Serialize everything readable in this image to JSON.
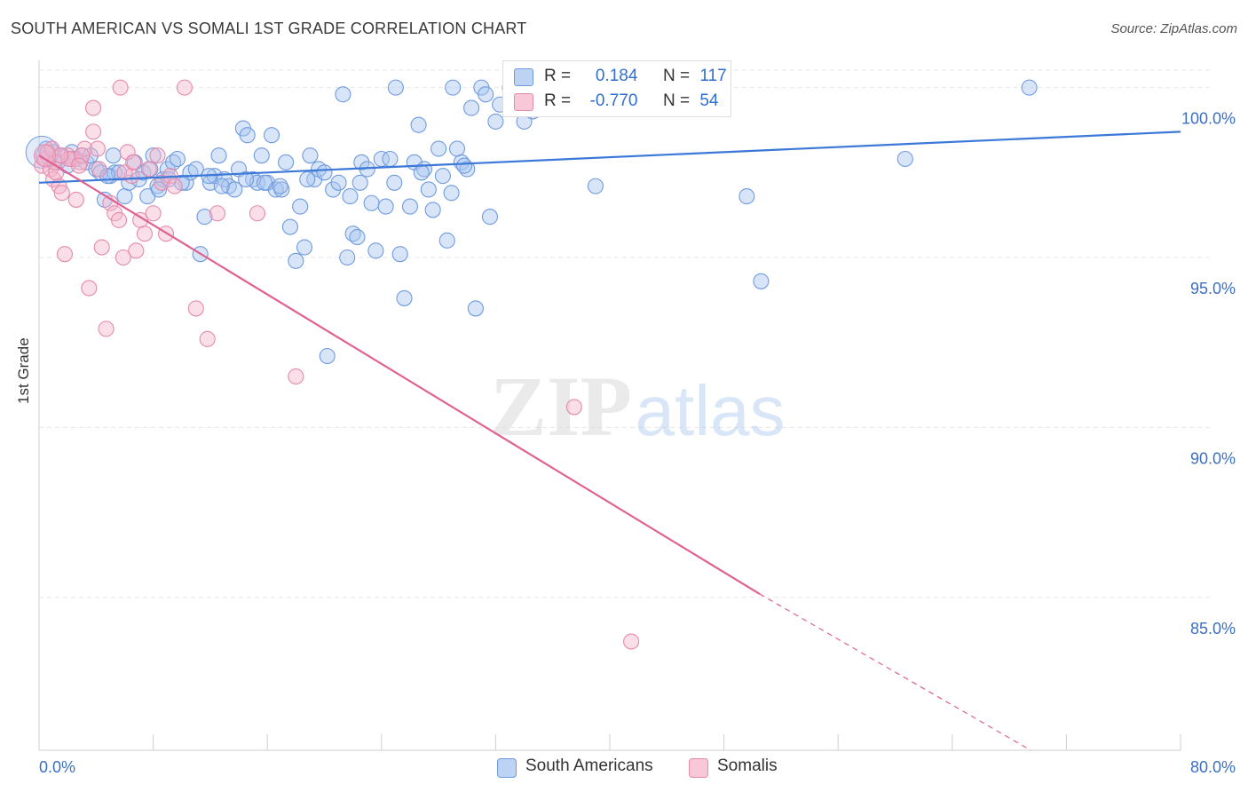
{
  "title": "SOUTH AMERICAN VS SOMALI 1ST GRADE CORRELATION CHART",
  "source": "Source: ZipAtlas.com",
  "watermark": {
    "zip": "ZIP",
    "atlas": "atlas"
  },
  "colors": {
    "blue": "#3b78d8",
    "blue_fill": "#a8c5f0",
    "pink": "#e06090",
    "pink_fill": "#f4b6cc",
    "axis_text": "#3b6fc4",
    "grid": "#e6e6e6"
  },
  "legend": {
    "rows": [
      {
        "r_label": "R =",
        "r_value": "0.184",
        "n_label": "N =",
        "n_value": "117",
        "series": "blue"
      },
      {
        "r_label": "R =",
        "r_value": "-0.770",
        "n_label": "N =",
        "n_value": "54",
        "series": "pink"
      }
    ]
  },
  "bottom_legend": [
    {
      "label": "South Americans",
      "series": "blue"
    },
    {
      "label": "Somalis",
      "series": "pink"
    }
  ],
  "chart_data": {
    "type": "scatter",
    "title": "SOUTH AMERICAN VS SOMALI 1ST GRADE CORRELATION CHART",
    "xlabel": "",
    "ylabel": "1st Grade",
    "xlim": [
      0,
      80
    ],
    "ylim": [
      80.5,
      100.8
    ],
    "x_tick_labels": [
      "0.0%",
      "80.0%"
    ],
    "y_ticks": [
      85,
      90,
      95,
      100
    ],
    "y_tick_labels": [
      "85.0%",
      "90.0%",
      "95.0%",
      "100.0%"
    ],
    "grid": "horizontal dashed",
    "legend_position": "top-center",
    "series": [
      {
        "name": "South Americans",
        "color": "#3b78d8",
        "r": 0.184,
        "n": 117,
        "trend": {
          "x": [
            0,
            80
          ],
          "y": [
            97.2,
            98.7
          ]
        },
        "points": [
          [
            0.3,
            98.0
          ],
          [
            0.5,
            98.2
          ],
          [
            0.7,
            97.9
          ],
          [
            1.0,
            98.1
          ],
          [
            1.3,
            97.8
          ],
          [
            1.6,
            98.0
          ],
          [
            2.0,
            97.7
          ],
          [
            2.3,
            98.1
          ],
          [
            2.6,
            97.9
          ],
          [
            3.0,
            98.0
          ],
          [
            3.3,
            97.8
          ],
          [
            3.6,
            98.0
          ],
          [
            4.0,
            97.6
          ],
          [
            4.3,
            97.5
          ],
          [
            4.6,
            96.7
          ],
          [
            5.0,
            97.4
          ],
          [
            5.3,
            97.5
          ],
          [
            5.6,
            97.5
          ],
          [
            6.0,
            96.8
          ],
          [
            6.3,
            97.2
          ],
          [
            6.7,
            97.8
          ],
          [
            7.0,
            97.3
          ],
          [
            7.3,
            97.5
          ],
          [
            7.6,
            96.8
          ],
          [
            8.0,
            98.0
          ],
          [
            8.3,
            97.1
          ],
          [
            8.7,
            97.3
          ],
          [
            9.0,
            97.6
          ],
          [
            9.4,
            97.8
          ],
          [
            9.7,
            97.9
          ],
          [
            10.3,
            97.2
          ],
          [
            10.6,
            97.5
          ],
          [
            11.0,
            97.6
          ],
          [
            11.3,
            95.1
          ],
          [
            11.6,
            96.2
          ],
          [
            12.0,
            97.2
          ],
          [
            12.3,
            97.4
          ],
          [
            12.6,
            98.0
          ],
          [
            13.0,
            97.3
          ],
          [
            13.3,
            97.1
          ],
          [
            13.7,
            97.0
          ],
          [
            14.0,
            97.6
          ],
          [
            14.3,
            98.8
          ],
          [
            14.6,
            98.6
          ],
          [
            15.0,
            97.3
          ],
          [
            15.3,
            97.2
          ],
          [
            15.6,
            98.0
          ],
          [
            16.0,
            97.2
          ],
          [
            16.3,
            98.6
          ],
          [
            16.6,
            97.0
          ],
          [
            17.0,
            97.0
          ],
          [
            17.3,
            97.8
          ],
          [
            17.6,
            95.9
          ],
          [
            18.0,
            94.9
          ],
          [
            18.3,
            96.5
          ],
          [
            18.6,
            95.3
          ],
          [
            19.0,
            98.0
          ],
          [
            19.3,
            97.3
          ],
          [
            19.6,
            97.6
          ],
          [
            20.0,
            97.5
          ],
          [
            20.6,
            97.0
          ],
          [
            21.0,
            97.2
          ],
          [
            21.3,
            99.8
          ],
          [
            21.6,
            95.0
          ],
          [
            22.0,
            95.7
          ],
          [
            22.3,
            95.6
          ],
          [
            22.6,
            97.8
          ],
          [
            23.0,
            97.6
          ],
          [
            23.3,
            96.6
          ],
          [
            23.6,
            95.2
          ],
          [
            24.0,
            97.9
          ],
          [
            24.3,
            96.5
          ],
          [
            24.6,
            97.9
          ],
          [
            25.0,
            100.0
          ],
          [
            25.3,
            95.1
          ],
          [
            25.6,
            93.8
          ],
          [
            26.0,
            96.5
          ],
          [
            26.3,
            97.8
          ],
          [
            26.6,
            98.9
          ],
          [
            27.0,
            97.6
          ],
          [
            27.3,
            97.0
          ],
          [
            27.6,
            96.4
          ],
          [
            28.0,
            98.2
          ],
          [
            28.3,
            97.4
          ],
          [
            28.6,
            95.5
          ],
          [
            29.0,
            100.0
          ],
          [
            29.3,
            98.2
          ],
          [
            29.6,
            97.8
          ],
          [
            30.0,
            97.6
          ],
          [
            30.3,
            99.4
          ],
          [
            30.6,
            93.5
          ],
          [
            31.0,
            100.0
          ],
          [
            31.3,
            99.8
          ],
          [
            31.6,
            96.2
          ],
          [
            32.0,
            99.0
          ],
          [
            32.3,
            99.5
          ],
          [
            33.0,
            100.0
          ],
          [
            33.3,
            99.8
          ],
          [
            34.0,
            99.0
          ],
          [
            34.6,
            99.3
          ],
          [
            35.0,
            99.8
          ],
          [
            35.5,
            100.0
          ],
          [
            36.0,
            99.8
          ],
          [
            39.0,
            97.1
          ],
          [
            49.6,
            96.8
          ],
          [
            50.6,
            94.3
          ],
          [
            60.7,
            97.9
          ],
          [
            69.4,
            100.0
          ],
          [
            20.2,
            92.1
          ],
          [
            14.5,
            97.3
          ],
          [
            4.8,
            97.4
          ],
          [
            7.8,
            97.6
          ],
          [
            10.0,
            97.2
          ],
          [
            12.8,
            97.1
          ],
          [
            15.8,
            97.2
          ],
          [
            18.8,
            97.3
          ],
          [
            22.5,
            97.2
          ],
          [
            26.8,
            97.5
          ],
          [
            29.8,
            97.7
          ],
          [
            5.2,
            98.0
          ],
          [
            9.1,
            97.3
          ],
          [
            11.9,
            97.4
          ],
          [
            16.9,
            97.1
          ],
          [
            21.8,
            96.8
          ],
          [
            24.9,
            97.2
          ],
          [
            28.9,
            96.9
          ],
          [
            8.4,
            97.0
          ]
        ]
      },
      {
        "name": "Somalis",
        "color": "#e06090",
        "r": -0.77,
        "n": 54,
        "trend": {
          "x": [
            0,
            50.5
          ],
          "y": [
            98.0,
            85.1
          ]
        },
        "trend_dashed": {
          "x": [
            50.5,
            69.5
          ],
          "y": [
            85.1,
            80.5
          ]
        },
        "points": [
          [
            0.2,
            97.7
          ],
          [
            0.4,
            97.9
          ],
          [
            0.6,
            98.1
          ],
          [
            0.8,
            97.6
          ],
          [
            1.0,
            97.3
          ],
          [
            1.2,
            97.5
          ],
          [
            1.4,
            97.1
          ],
          [
            1.6,
            96.9
          ],
          [
            1.8,
            95.1
          ],
          [
            2.0,
            98.0
          ],
          [
            2.3,
            97.9
          ],
          [
            2.6,
            96.7
          ],
          [
            2.9,
            97.8
          ],
          [
            3.2,
            98.2
          ],
          [
            3.5,
            94.1
          ],
          [
            3.8,
            99.4
          ],
          [
            3.8,
            98.7
          ],
          [
            4.1,
            98.2
          ],
          [
            4.4,
            95.3
          ],
          [
            4.7,
            92.9
          ],
          [
            5.0,
            96.6
          ],
          [
            5.3,
            96.3
          ],
          [
            5.6,
            96.1
          ],
          [
            5.9,
            95.0
          ],
          [
            6.2,
            98.1
          ],
          [
            6.5,
            97.4
          ],
          [
            6.8,
            95.2
          ],
          [
            7.1,
            96.1
          ],
          [
            7.4,
            95.7
          ],
          [
            7.7,
            97.6
          ],
          [
            8.0,
            96.3
          ],
          [
            8.3,
            98.0
          ],
          [
            8.6,
            97.2
          ],
          [
            8.9,
            95.7
          ],
          [
            9.2,
            97.4
          ],
          [
            9.5,
            97.1
          ],
          [
            10.2,
            100.0
          ],
          [
            11.0,
            93.5
          ],
          [
            11.8,
            92.6
          ],
          [
            12.5,
            96.3
          ],
          [
            15.3,
            96.3
          ],
          [
            18.0,
            91.5
          ],
          [
            37.5,
            90.6
          ],
          [
            41.5,
            83.7
          ],
          [
            5.7,
            100.0
          ],
          [
            1.1,
            97.8
          ],
          [
            2.1,
            97.9
          ],
          [
            3.0,
            98.0
          ],
          [
            6.0,
            97.5
          ],
          [
            0.9,
            98.2
          ],
          [
            1.5,
            98.0
          ],
          [
            2.8,
            97.7
          ],
          [
            4.2,
            97.6
          ],
          [
            6.6,
            97.8
          ]
        ]
      }
    ]
  }
}
